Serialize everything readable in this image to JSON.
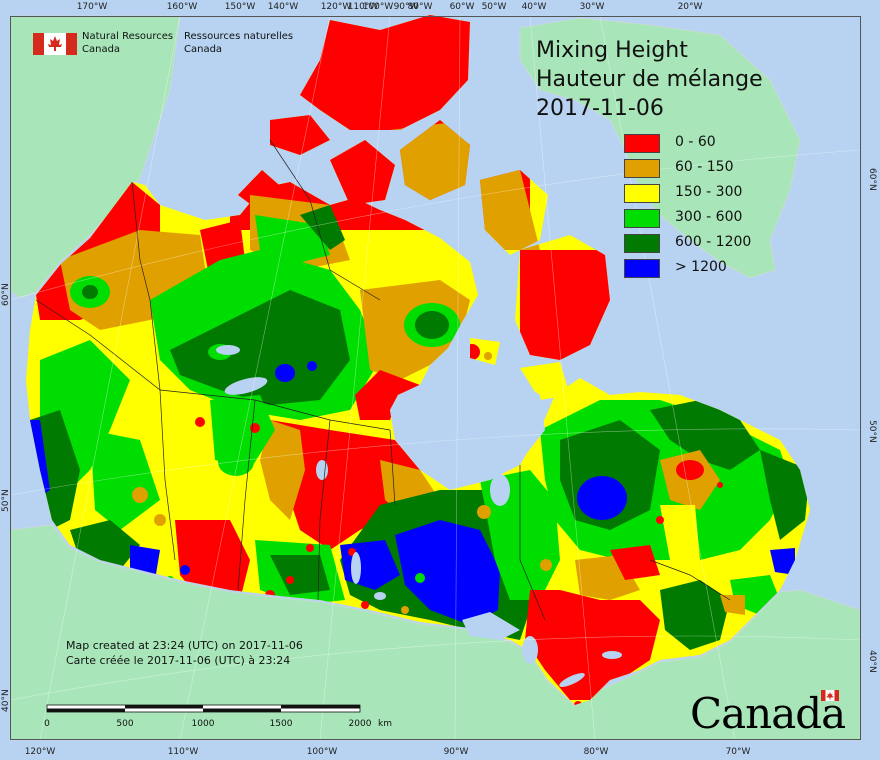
{
  "header": {
    "dept_en_line1": "Natural Resources",
    "dept_en_line2": "Canada",
    "dept_fr_line1": "Ressources naturelles",
    "dept_fr_line2": "Canada"
  },
  "title": {
    "en": "Mixing Height",
    "fr": "Hauteur de mélange",
    "date": "2017-11-06"
  },
  "legend": [
    {
      "label": "0 - 60",
      "color": "#ff0000"
    },
    {
      "label": "60 - 150",
      "color": "#e0a000"
    },
    {
      "label": "150 - 300",
      "color": "#ffff00"
    },
    {
      "label": "300 - 600",
      "color": "#00dd00"
    },
    {
      "label": "600 - 1200",
      "color": "#007a00"
    },
    {
      "label": "> 1200",
      "color": "#0000ff"
    }
  ],
  "credits": {
    "en": "Map created at 23:24 (UTC) on 2017-11-06",
    "fr": "Carte créée le 2017-11-06 (UTC) à 23:24"
  },
  "scale": {
    "labels": [
      "0",
      "500",
      "1000",
      "1500",
      "2000"
    ],
    "unit": "km"
  },
  "graticule": {
    "top": [
      "170°W",
      "160°W",
      "150°W",
      "140°W",
      "120°W",
      "110°W",
      "100°W",
      "90°W",
      "80°W",
      "60°W",
      "50°W",
      "40°W",
      "30°W",
      "20°W"
    ],
    "bottom": [
      "120°W",
      "110°W",
      "100°W",
      "90°W",
      "80°W",
      "70°W"
    ],
    "left": [
      "60°N",
      "50°N",
      "40°N"
    ],
    "right": [
      "60°N",
      "50°N",
      "40°N"
    ]
  },
  "wordmark": "Canada",
  "colors": {
    "ocean": "#b7d3f1",
    "land_other": "#a8e6b9",
    "border": "#222222"
  }
}
